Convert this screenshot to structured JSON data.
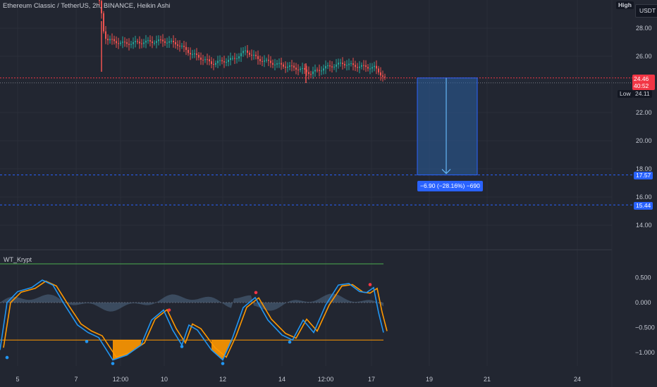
{
  "header": {
    "symbol_title": "Ethereum Classic / TetherUS, 2h, BINANCE, Heikin Ashi",
    "currency_button": "USDT",
    "high_label": "High",
    "low_label": "Low",
    "low_value": "24.11"
  },
  "price_axis": {
    "ticks": [
      {
        "label": "28.00",
        "value": 28
      },
      {
        "label": "26.00",
        "value": 26
      },
      {
        "label": "22.00",
        "value": 22
      },
      {
        "label": "20.00",
        "value": 20
      },
      {
        "label": "18.00",
        "value": 18
      },
      {
        "label": "16.00",
        "value": 16
      },
      {
        "label": "14.00",
        "value": 14
      }
    ]
  },
  "price_tags": {
    "current": {
      "price": "24.46",
      "countdown": "40:52",
      "color": "#f23645"
    },
    "level1": {
      "price": "17.57",
      "color": "#2962ff"
    },
    "level2": {
      "price": "15.44",
      "color": "#2962ff"
    }
  },
  "measure": {
    "label": "−6.90 (−28.16%) −690",
    "from_price": 24.46,
    "to_price": 17.57,
    "color": "#2a5f9e"
  },
  "indicator": {
    "name": "WT_Krypt",
    "ticks": [
      {
        "label": "0.500",
        "value": 0.5
      },
      {
        "label": "0.000",
        "value": 0.0
      },
      {
        "label": "−0.500",
        "value": -0.5
      },
      {
        "label": "−1.000",
        "value": -1.0
      }
    ],
    "wave1_color": "#2196f3",
    "wave2_color": "#ff9800",
    "overbought_color": "#4caf50",
    "oversold_color": "#ff9800"
  },
  "time_axis": {
    "labels": [
      "5",
      "7",
      "12:00",
      "10",
      "12",
      "14",
      "12:00",
      "17",
      "19",
      "21",
      "24"
    ]
  },
  "colors": {
    "up": "#26a69a",
    "down": "#ef5350",
    "background": "#222631",
    "grid": "#2a2e39"
  }
}
